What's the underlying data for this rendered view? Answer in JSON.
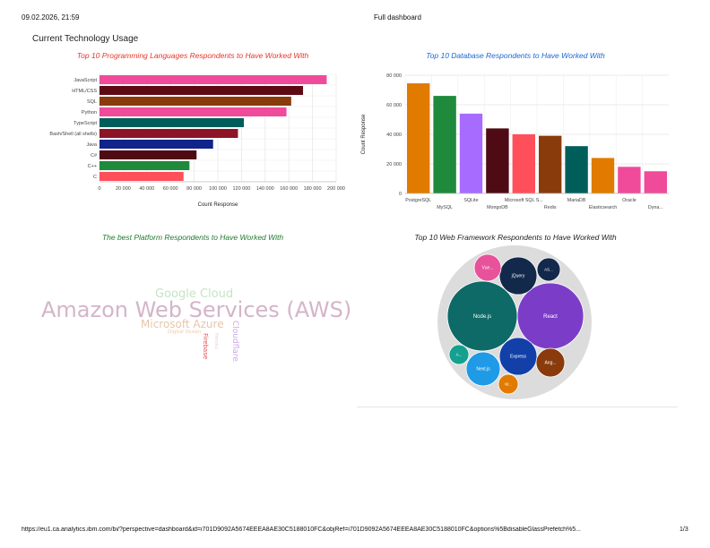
{
  "header": {
    "datetime": "09.02.2026, 21:59",
    "title": "Full dashboard"
  },
  "dashboard": {
    "title": "Current Technology Usage"
  },
  "colors": {
    "title_red": "#e8332a",
    "title_blue": "#1a66d6",
    "title_green": "#1e7a2e",
    "title_dark": "#222222"
  },
  "chart_data": [
    {
      "type": "bar",
      "orientation": "horizontal",
      "title": "Top 10 Programming Languages Respondents to Have Worked With",
      "xlabel": "Count Response",
      "ylabel": "",
      "categories": [
        "C",
        "C++",
        "C#",
        "Java",
        "Bash/Shell (all shells)",
        "TypeScript",
        "Python",
        "SQL",
        "HTML/CSS",
        "JavaScript"
      ],
      "values": [
        71000,
        76000,
        82000,
        96000,
        117000,
        122000,
        158000,
        162000,
        172000,
        192000
      ],
      "colors": [
        "#ff4f5a",
        "#1f8a3c",
        "#4e0b14",
        "#12238a",
        "#8c1426",
        "#005e5a",
        "#f04b9a",
        "#8a3b0c",
        "#5e0a14",
        "#f04b9a"
      ],
      "xlim": [
        0,
        200000
      ],
      "xticks": [
        "0",
        "20 000",
        "40 000",
        "60 000",
        "80 000",
        "100 000",
        "120 000",
        "140 000",
        "160 000",
        "180 000",
        "200 000"
      ],
      "grid": true
    },
    {
      "type": "bar",
      "title": "Top 10 Database  Respondents to Have Worked With",
      "xlabel": "",
      "ylabel": "Count Response",
      "categories": [
        "PostgreSQL",
        "MySQL",
        "SQLite",
        "MongoDB",
        "Microsoft SQL S...",
        "Redis",
        "MariaDB",
        "Elasticsearch",
        "Oracle",
        "Dyna..."
      ],
      "values": [
        74500,
        66000,
        54000,
        44000,
        40000,
        39000,
        32000,
        24000,
        18000,
        15000
      ],
      "colors": [
        "#e07b00",
        "#1f8a3c",
        "#a86bff",
        "#4e0b14",
        "#ff4f5a",
        "#8a3b0c",
        "#005e5a",
        "#e07b00",
        "#f04b9a",
        "#f04b9a"
      ],
      "ylim": [
        0,
        80000
      ],
      "yticks": [
        "0",
        "20 000",
        "40 000",
        "60 000",
        "80 000"
      ],
      "grid": true
    },
    {
      "type": "wordcloud",
      "title": "The best Platform Respondents to Have Worked With",
      "words": [
        {
          "text": "Amazon Web Services (AWS)",
          "color": "#d4b5c8"
        },
        {
          "text": "Google Cloud",
          "color": "#c4e4c4"
        },
        {
          "text": "Microsoft Azure",
          "color": "#e6c7a8"
        },
        {
          "text": "Digital Ocean",
          "color": "#f2c9a9"
        },
        {
          "text": "Firebase",
          "color": "#ef4a4f"
        },
        {
          "text": "Cloudflare",
          "color": "#cfa8ee"
        },
        {
          "text": "Heroku",
          "color": "#f5c8d2"
        }
      ]
    },
    {
      "type": "bubble",
      "title": "Top 10 Web Framework Respondents to Have Worked With",
      "bubbles": [
        {
          "label": "Node.js",
          "color": "#0e6a66"
        },
        {
          "label": "React",
          "color": "#7b3dc8"
        },
        {
          "label": "jQuery",
          "color": "#13294b"
        },
        {
          "label": "Express",
          "color": "#1240a8"
        },
        {
          "label": "Next.js",
          "color": "#1f9ae6"
        },
        {
          "label": "Ang...",
          "color": "#8a3b0c"
        },
        {
          "label": "Vue...",
          "color": "#e8529a"
        },
        {
          "label": "AS...",
          "color": "#13294b"
        },
        {
          "label": "A...",
          "color": "#15a090"
        },
        {
          "label": "W...",
          "color": "#e07b00"
        }
      ]
    }
  ],
  "footer": {
    "url": "https://eu1.ca.analytics.ibm.com/bi/?perspective=dashboard&id=i701D9092A5674EEEA8AE30C5188010FC&objRef=i701D9092A5674EEEA8AE30C5188010FC&options%5BdisableGlassPrefetch%5...",
    "page": "1/3"
  }
}
